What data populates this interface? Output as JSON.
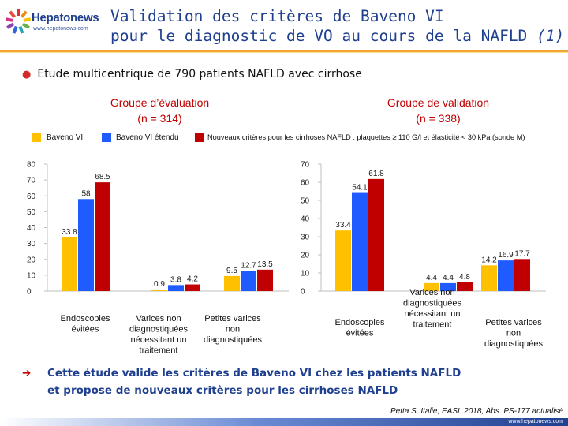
{
  "header": {
    "logo_name": "Hepatonews",
    "logo_url": "www.hepatonews.com",
    "title_line1": "Validation des critères de Baveno VI",
    "title_line2_main": "pour le diagnostic de VO au cours de la NAFLD ",
    "title_line2_ref": "(1)"
  },
  "bullet": "Etude multicentrique de 790 patients NAFLD avec cirrhose",
  "groups": {
    "left_title": "Groupe d’évaluation",
    "left_n": "(n = 314)",
    "right_title": "Groupe de validation",
    "right_n": "(n = 338)"
  },
  "legend": [
    {
      "label": "Baveno VI",
      "color": "#ffc000"
    },
    {
      "label": "Baveno VI étendu",
      "color": "#1f5bff"
    },
    {
      "label": "Nouveaux critères pour les cirrhoses NAFLD : plaquettes ≥ 110 G/l et élasticité < 30 kPa (sonde M)",
      "color": "#c00000"
    }
  ],
  "chart_data": [
    {
      "type": "bar",
      "title": "Groupe d’évaluation (n = 314)",
      "categories": [
        "Endoscopies évitées",
        "Varices non diagnostiquées nécessitant un traitement",
        "Petites varices non diagnostiquées"
      ],
      "category_lines": [
        [
          "Endoscopies",
          "évitées"
        ],
        [
          "Varices non",
          "diagnostiquées",
          "nécessitant un",
          "traitement"
        ],
        [
          "Petites varices",
          "non",
          "diagnostiquées"
        ]
      ],
      "series": [
        {
          "name": "Baveno VI",
          "values": [
            33.8,
            0.9,
            9.5
          ]
        },
        {
          "name": "Baveno VI étendu",
          "values": [
            58,
            3.8,
            12.7
          ]
        },
        {
          "name": "Nouveaux critères pour les cirrhoses NAFLD",
          "values": [
            68.5,
            4.2,
            13.5
          ]
        }
      ],
      "value_labels": [
        [
          "33.8",
          "58",
          "68.5"
        ],
        [
          "0.9",
          "3.8",
          "4.2"
        ],
        [
          "9.5",
          "12.7",
          "13.5"
        ]
      ],
      "ylim": [
        0,
        80
      ],
      "yticks": [
        0,
        10,
        20,
        30,
        40,
        50,
        60,
        70,
        80
      ],
      "grid": false
    },
    {
      "type": "bar",
      "title": "Groupe de validation (n = 338)",
      "categories": [
        "Endoscopies évitées",
        "Varices non diagnostiquées nécessitant un traitement",
        "Petites varices non diagnostiquées"
      ],
      "category_lines": [
        [
          "Endoscopies",
          "évitées"
        ],
        [
          "Varices non",
          "diagnostiquées",
          "nécessitant un",
          "traitement"
        ],
        [
          "Petites varices",
          "non",
          "diagnostiquées"
        ]
      ],
      "series": [
        {
          "name": "Baveno VI",
          "values": [
            33.4,
            4.4,
            14.2
          ]
        },
        {
          "name": "Baveno VI étendu",
          "values": [
            54.1,
            4.4,
            16.9
          ]
        },
        {
          "name": "Nouveaux critères pour les cirrhoses NAFLD",
          "values": [
            61.8,
            4.8,
            17.7
          ]
        }
      ],
      "value_labels": [
        [
          "33.4",
          "54.1",
          "61.8"
        ],
        [
          "4.4",
          "4.4",
          "4.8"
        ],
        [
          "14.2",
          "16.9",
          "17.7"
        ]
      ],
      "ylim": [
        0,
        70
      ],
      "yticks": [
        0,
        10,
        20,
        30,
        40,
        50,
        60,
        70
      ],
      "grid": false
    }
  ],
  "conclusion": {
    "line1": "Cette étude valide les critères de Baveno VI chez les patients NAFLD",
    "line2": "et propose de nouveaux critères pour les cirrhoses NAFLD"
  },
  "citation": "Petta S, Italie, EASL 2018, Abs. PS-177 actualisé",
  "footer_url": "www.hepatonews.com"
}
